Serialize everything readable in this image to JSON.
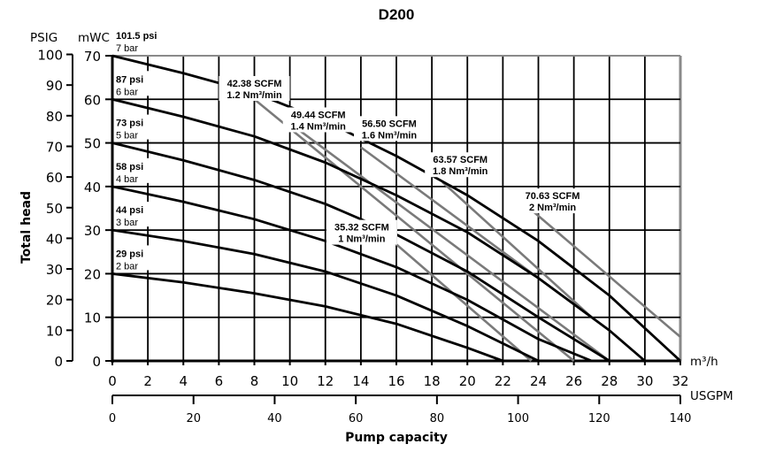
{
  "chart_data": {
    "type": "line",
    "title": "D200",
    "xlabel": "Pump capacity",
    "ylabel": "Total head",
    "x_primary": {
      "unit": "m³/h",
      "range": [
        0,
        32
      ],
      "ticks": [
        "0",
        "2",
        "4",
        "6",
        "8",
        "10",
        "12",
        "14",
        "16",
        "18",
        "20",
        "22",
        "24",
        "26",
        "28",
        "30",
        "32"
      ]
    },
    "x_secondary": {
      "unit": "USGPM",
      "range": [
        0,
        140
      ],
      "ticks": [
        "0",
        "20",
        "40",
        "60",
        "80",
        "100",
        "120",
        "140"
      ]
    },
    "y_primary": {
      "unit": "mWC",
      "range": [
        0,
        70
      ],
      "ticks": [
        "0",
        "10",
        "20",
        "30",
        "40",
        "50",
        "60",
        "70"
      ]
    },
    "y_secondary": {
      "unit": "PSIG",
      "range": [
        0,
        100
      ],
      "ticks": [
        "0",
        "10",
        "20",
        "30",
        "40",
        "50",
        "60",
        "70",
        "80",
        "90",
        "100"
      ]
    },
    "grid": true,
    "pressure_series": [
      {
        "name": "7 bar",
        "psi_label": "101.5 psi",
        "bar_label": "7 bar",
        "color": "#000000",
        "points": [
          [
            0,
            70
          ],
          [
            4,
            66
          ],
          [
            8,
            61.5
          ],
          [
            12,
            55
          ],
          [
            16,
            47
          ],
          [
            20,
            38
          ],
          [
            24,
            27.5
          ],
          [
            28,
            15
          ],
          [
            32,
            0
          ]
        ]
      },
      {
        "name": "6 bar",
        "psi_label": "87 psi",
        "bar_label": "6 bar",
        "color": "#000000",
        "points": [
          [
            0,
            60
          ],
          [
            4,
            56
          ],
          [
            8,
            51.5
          ],
          [
            12,
            45.5
          ],
          [
            16,
            38
          ],
          [
            20,
            29.5
          ],
          [
            24,
            19
          ],
          [
            28,
            7
          ],
          [
            30,
            0
          ]
        ]
      },
      {
        "name": "5 bar",
        "psi_label": "73 psi",
        "bar_label": "5 bar",
        "color": "#000000",
        "points": [
          [
            0,
            50
          ],
          [
            4,
            46
          ],
          [
            8,
            41.5
          ],
          [
            12,
            36
          ],
          [
            16,
            29
          ],
          [
            20,
            20.5
          ],
          [
            24,
            10
          ],
          [
            28,
            0
          ]
        ]
      },
      {
        "name": "4 bar",
        "psi_label": "58 psi",
        "bar_label": "4 bar",
        "color": "#000000",
        "points": [
          [
            0,
            40
          ],
          [
            4,
            36.5
          ],
          [
            8,
            32.5
          ],
          [
            12,
            27.5
          ],
          [
            16,
            21.5
          ],
          [
            20,
            14
          ],
          [
            24,
            5
          ],
          [
            27,
            0
          ]
        ]
      },
      {
        "name": "3 bar",
        "psi_label": "44 psi",
        "bar_label": "3 bar",
        "color": "#000000",
        "points": [
          [
            0,
            30
          ],
          [
            4,
            27.5
          ],
          [
            8,
            24.5
          ],
          [
            12,
            20.5
          ],
          [
            16,
            15
          ],
          [
            20,
            8
          ],
          [
            24,
            0
          ]
        ]
      },
      {
        "name": "2 bar",
        "psi_label": "29 psi",
        "bar_label": "2 bar",
        "color": "#000000",
        "points": [
          [
            0,
            20
          ],
          [
            4,
            18
          ],
          [
            8,
            15.5
          ],
          [
            12,
            12.5
          ],
          [
            16,
            8.5
          ],
          [
            20,
            3
          ],
          [
            22,
            0
          ]
        ]
      }
    ],
    "air_consumption_series": [
      {
        "name": "1 Nm³/min",
        "scfm_label": "35.32 SCFM",
        "nm3_label": "1 Nm³/min",
        "color": "#7a7a7a",
        "points": [
          [
            14.5,
            32
          ],
          [
            23.6,
            0
          ]
        ]
      },
      {
        "name": "1.2 Nm³/min",
        "scfm_label": "42.38 SCFM",
        "nm3_label": "1.2 Nm³/min",
        "color": "#7a7a7a",
        "points": [
          [
            8,
            60
          ],
          [
            26,
            0
          ]
        ]
      },
      {
        "name": "1.4 Nm³/min",
        "scfm_label": "49.44 SCFM",
        "nm3_label": "1.4 Nm³/min",
        "color": "#7a7a7a",
        "points": [
          [
            10.5,
            53
          ],
          [
            28,
            0
          ]
        ]
      },
      {
        "name": "1.6 Nm³/min",
        "scfm_label": "56.50 SCFM",
        "nm3_label": "1.6 Nm³/min",
        "color": "#7a7a7a",
        "points": [
          [
            14,
            49
          ],
          [
            27,
            10
          ]
        ]
      },
      {
        "name": "1.8 Nm³/min",
        "scfm_label": "63.57 SCFM",
        "nm3_label": "1.8 Nm³/min",
        "color": "#7a7a7a",
        "points": [
          [
            18.6,
            41
          ],
          [
            27,
            10
          ]
        ]
      },
      {
        "name": "2 Nm³/min",
        "scfm_label": "70.63 SCFM",
        "nm3_label": "2 Nm³/min",
        "color": "#7a7a7a",
        "points": [
          [
            23.5,
            35
          ],
          [
            32,
            5.5
          ]
        ]
      }
    ]
  }
}
